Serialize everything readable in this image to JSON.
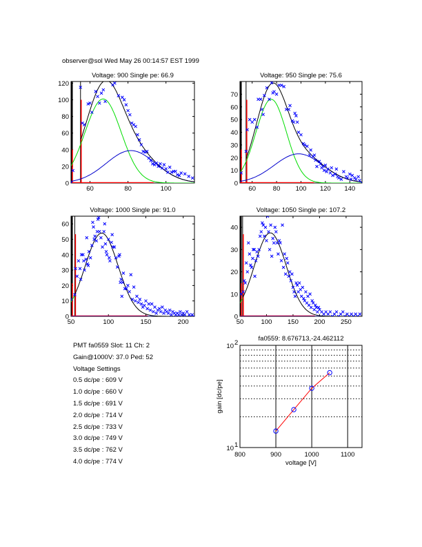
{
  "header": {
    "title": "observer@sol Wed May 26 00:14:57 EST 1999"
  },
  "info": {
    "pmt_line": "PMT fa0559 Slot: 11 Ch: 2",
    "gain_line": "Gain@1000V: 37.0 Ped: 52",
    "settings_title": "Voltage Settings",
    "settings": [
      "0.5 dc/pe : 609 V",
      "1.0 dc/pe : 660 V",
      "1.5 dc/pe : 691 V",
      "2.0 dc/pe : 714 V",
      "2.5 dc/pe : 733 V",
      "3.0 dc/pe : 749 V",
      "3.5 dc/pe : 762 V",
      "4.0 dc/pe : 774 V"
    ]
  },
  "colors": {
    "data": "#0000ff",
    "fit_total": "#000000",
    "fit_single": "#00dd00",
    "fit_double": "#0000cc",
    "pedestal": "#ff0000",
    "gain_line": "#ff0000"
  },
  "chart_data": [
    {
      "type": "scatter",
      "title": "Voltage: 900 Single pe: 66.9",
      "xlim": [
        50,
        115
      ],
      "ylim": [
        0,
        122
      ],
      "xticks": [
        60,
        80,
        100
      ],
      "yticks": [
        0,
        20,
        40,
        60,
        80,
        100,
        120
      ],
      "pedestal_cut": 55,
      "fits": {
        "single": {
          "amp": 101,
          "mu": 66.9,
          "sigma": 9.5
        },
        "double": {
          "amp": 39,
          "mu": 81.5,
          "sigma": 13
        }
      },
      "points": [
        [
          50,
          0
        ],
        [
          51,
          15
        ],
        [
          55,
          115
        ],
        [
          56,
          72
        ],
        [
          57,
          70
        ],
        [
          59,
          95
        ],
        [
          60,
          96
        ],
        [
          61,
          85
        ],
        [
          63,
          110
        ],
        [
          64,
          104
        ],
        [
          65,
          96
        ],
        [
          66,
          108
        ],
        [
          67,
          112
        ],
        [
          68,
          98
        ],
        [
          72,
          118
        ],
        [
          73,
          120
        ],
        [
          75,
          105
        ],
        [
          77,
          103
        ],
        [
          78,
          100
        ],
        [
          79,
          94
        ],
        [
          80,
          87
        ],
        [
          81,
          82
        ],
        [
          82,
          72
        ],
        [
          83,
          70
        ],
        [
          84,
          68
        ],
        [
          85,
          58
        ],
        [
          86,
          52
        ],
        [
          87,
          46
        ],
        [
          88,
          38
        ],
        [
          89,
          37
        ],
        [
          90,
          38
        ],
        [
          91,
          30
        ],
        [
          92,
          27
        ],
        [
          93,
          23
        ],
        [
          94,
          22
        ],
        [
          95,
          24
        ],
        [
          96,
          20
        ],
        [
          97,
          23
        ],
        [
          98,
          18
        ],
        [
          99,
          22
        ],
        [
          100,
          17
        ],
        [
          101,
          13
        ],
        [
          102,
          19
        ],
        [
          103,
          13
        ],
        [
          104,
          14
        ],
        [
          105,
          14
        ],
        [
          106,
          10
        ],
        [
          107,
          9
        ],
        [
          108,
          12
        ],
        [
          110,
          11
        ],
        [
          112,
          8
        ],
        [
          114,
          6
        ]
      ]
    },
    {
      "type": "scatter",
      "title": "Voltage: 950 Single pe: 75.6",
      "xlim": [
        50,
        150
      ],
      "ylim": [
        0,
        80
      ],
      "xticks": [
        60,
        80,
        100,
        120,
        140
      ],
      "yticks": [
        0,
        10,
        20,
        30,
        40,
        50,
        60,
        70
      ],
      "pedestal_cut": 55,
      "fits": {
        "single": {
          "amp": 66,
          "mu": 75.6,
          "sigma": 12.5
        },
        "double": {
          "amp": 23,
          "mu": 98,
          "sigma": 20
        }
      },
      "points": [
        [
          51,
          8
        ],
        [
          55,
          25
        ],
        [
          56,
          42
        ],
        [
          58,
          50
        ],
        [
          60,
          48
        ],
        [
          62,
          50
        ],
        [
          64,
          44
        ],
        [
          65,
          66
        ],
        [
          67,
          66
        ],
        [
          68,
          58
        ],
        [
          69,
          54
        ],
        [
          70,
          69
        ],
        [
          72,
          75
        ],
        [
          74,
          66
        ],
        [
          76,
          79
        ],
        [
          77,
          71
        ],
        [
          78,
          72
        ],
        [
          80,
          70
        ],
        [
          82,
          77
        ],
        [
          84,
          77
        ],
        [
          86,
          76
        ],
        [
          88,
          58
        ],
        [
          90,
          58
        ],
        [
          91,
          61
        ],
        [
          93,
          49
        ],
        [
          94,
          48
        ],
        [
          95,
          55
        ],
        [
          96,
          53
        ],
        [
          97,
          48
        ],
        [
          98,
          40
        ],
        [
          100,
          38
        ],
        [
          102,
          31
        ],
        [
          103,
          30
        ],
        [
          105,
          29
        ],
        [
          107,
          22
        ],
        [
          108,
          26
        ],
        [
          110,
          21
        ],
        [
          111,
          22
        ],
        [
          112,
          18
        ],
        [
          113,
          13
        ],
        [
          115,
          17
        ],
        [
          116,
          15
        ],
        [
          117,
          12
        ],
        [
          118,
          13
        ],
        [
          119,
          10
        ],
        [
          120,
          14
        ],
        [
          121,
          9
        ],
        [
          122,
          11
        ],
        [
          124,
          8
        ],
        [
          125,
          12
        ],
        [
          126,
          6
        ],
        [
          128,
          7
        ],
        [
          129,
          11
        ],
        [
          130,
          5
        ],
        [
          131,
          4
        ],
        [
          133,
          3
        ],
        [
          135,
          9
        ],
        [
          137,
          5
        ],
        [
          138,
          4
        ],
        [
          140,
          7
        ],
        [
          141,
          3
        ],
        [
          142,
          6
        ],
        [
          144,
          4
        ],
        [
          145,
          3
        ],
        [
          147,
          5
        ],
        [
          148,
          2
        ],
        [
          150,
          0
        ]
      ]
    },
    {
      "type": "scatter",
      "title": "Voltage: 1000 Single pe: 91.0",
      "xlim": [
        50,
        215
      ],
      "ylim": [
        0,
        65
      ],
      "xticks": [
        50,
        100,
        150,
        200
      ],
      "yticks": [
        0,
        10,
        20,
        30,
        40,
        50,
        60
      ],
      "pedestal_cut": 55,
      "fits": {
        "single": {
          "amp": 54,
          "mu": 91.0,
          "sigma": 22
        },
        "double": {
          "amp": 0,
          "mu": 182,
          "sigma": 30
        }
      },
      "points": [
        [
          50,
          11
        ],
        [
          55,
          14
        ],
        [
          56,
          31
        ],
        [
          58,
          26
        ],
        [
          60,
          36
        ],
        [
          62,
          31
        ],
        [
          63,
          24
        ],
        [
          64,
          40
        ],
        [
          66,
          40
        ],
        [
          67,
          36
        ],
        [
          68,
          30
        ],
        [
          70,
          37
        ],
        [
          71,
          51
        ],
        [
          72,
          34
        ],
        [
          73,
          33
        ],
        [
          74,
          42
        ],
        [
          76,
          38
        ],
        [
          78,
          46
        ],
        [
          79,
          61
        ],
        [
          80,
          58
        ],
        [
          81,
          50
        ],
        [
          82,
          52
        ],
        [
          84,
          49
        ],
        [
          85,
          55
        ],
        [
          86,
          63
        ],
        [
          87,
          64
        ],
        [
          88,
          55
        ],
        [
          90,
          51
        ],
        [
          92,
          45
        ],
        [
          94,
          55
        ],
        [
          95,
          60
        ],
        [
          96,
          47
        ],
        [
          97,
          42
        ],
        [
          98,
          40
        ],
        [
          100,
          50
        ],
        [
          101,
          38
        ],
        [
          102,
          36
        ],
        [
          104,
          48
        ],
        [
          105,
          53
        ],
        [
          106,
          45
        ],
        [
          108,
          45
        ],
        [
          110,
          38
        ],
        [
          112,
          32
        ],
        [
          114,
          39
        ],
        [
          115,
          40
        ],
        [
          116,
          22
        ],
        [
          117,
          24
        ],
        [
          118,
          13
        ],
        [
          119,
          22
        ],
        [
          120,
          28
        ],
        [
          122,
          18
        ],
        [
          124,
          18
        ],
        [
          126,
          20
        ],
        [
          128,
          16
        ],
        [
          130,
          27
        ],
        [
          132,
          11
        ],
        [
          134,
          19
        ],
        [
          136,
          10
        ],
        [
          138,
          13
        ],
        [
          140,
          9
        ],
        [
          142,
          11
        ],
        [
          144,
          8
        ],
        [
          146,
          6
        ],
        [
          148,
          7
        ],
        [
          150,
          10
        ],
        [
          152,
          5
        ],
        [
          154,
          8
        ],
        [
          156,
          4
        ],
        [
          158,
          8
        ],
        [
          160,
          3
        ],
        [
          162,
          6
        ],
        [
          164,
          2
        ],
        [
          166,
          4
        ],
        [
          168,
          5
        ],
        [
          170,
          3
        ],
        [
          172,
          6
        ],
        [
          174,
          2
        ],
        [
          176,
          4
        ],
        [
          178,
          3
        ],
        [
          180,
          2
        ],
        [
          182,
          4
        ],
        [
          184,
          1
        ],
        [
          186,
          3
        ],
        [
          188,
          2
        ],
        [
          190,
          1
        ],
        [
          192,
          2
        ],
        [
          194,
          1
        ],
        [
          196,
          3
        ],
        [
          198,
          1
        ],
        [
          200,
          2
        ],
        [
          202,
          1
        ],
        [
          205,
          3
        ],
        [
          208,
          1
        ],
        [
          210,
          0
        ],
        [
          212,
          1
        ],
        [
          214,
          0
        ]
      ]
    },
    {
      "type": "scatter",
      "title": "Voltage: 1050 Single pe: 107.2",
      "xlim": [
        50,
        280
      ],
      "ylim": [
        0,
        45
      ],
      "xticks": [
        50,
        100,
        150,
        200,
        250
      ],
      "yticks": [
        0,
        10,
        20,
        30,
        40
      ],
      "pedestal_cut": 55,
      "fits": {
        "single": {
          "amp": 37.5,
          "mu": 107.2,
          "sigma": 30
        },
        "double": {
          "amp": 0,
          "mu": 214,
          "sigma": 40
        }
      },
      "points": [
        [
          52,
          10
        ],
        [
          56,
          11
        ],
        [
          58,
          16
        ],
        [
          60,
          15
        ],
        [
          62,
          24
        ],
        [
          64,
          20
        ],
        [
          66,
          33
        ],
        [
          68,
          28
        ],
        [
          70,
          23
        ],
        [
          72,
          22
        ],
        [
          74,
          26
        ],
        [
          75,
          30
        ],
        [
          77,
          30
        ],
        [
          78,
          18
        ],
        [
          80,
          25
        ],
        [
          82,
          29
        ],
        [
          84,
          27
        ],
        [
          86,
          30
        ],
        [
          88,
          36
        ],
        [
          90,
          38
        ],
        [
          92,
          42
        ],
        [
          94,
          41
        ],
        [
          96,
          36
        ],
        [
          98,
          40
        ],
        [
          100,
          34
        ],
        [
          102,
          45
        ],
        [
          104,
          38
        ],
        [
          106,
          30
        ],
        [
          108,
          41
        ],
        [
          110,
          27
        ],
        [
          112,
          35
        ],
        [
          114,
          33
        ],
        [
          116,
          40
        ],
        [
          118,
          38
        ],
        [
          120,
          33
        ],
        [
          122,
          28
        ],
        [
          124,
          34
        ],
        [
          126,
          33
        ],
        [
          128,
          25
        ],
        [
          130,
          41
        ],
        [
          132,
          22
        ],
        [
          134,
          28
        ],
        [
          136,
          19
        ],
        [
          138,
          26
        ],
        [
          140,
          24
        ],
        [
          142,
          18
        ],
        [
          144,
          20
        ],
        [
          146,
          16
        ],
        [
          148,
          19
        ],
        [
          150,
          13
        ],
        [
          152,
          11
        ],
        [
          154,
          9
        ],
        [
          156,
          15
        ],
        [
          158,
          14
        ],
        [
          160,
          11
        ],
        [
          162,
          15
        ],
        [
          164,
          12
        ],
        [
          166,
          9
        ],
        [
          168,
          13
        ],
        [
          170,
          8
        ],
        [
          172,
          7
        ],
        [
          174,
          11
        ],
        [
          176,
          6
        ],
        [
          178,
          9
        ],
        [
          180,
          5
        ],
        [
          182,
          10
        ],
        [
          184,
          4
        ],
        [
          186,
          7
        ],
        [
          188,
          6
        ],
        [
          190,
          3
        ],
        [
          192,
          5
        ],
        [
          194,
          4
        ],
        [
          196,
          2
        ],
        [
          198,
          4
        ],
        [
          200,
          3
        ],
        [
          204,
          2
        ],
        [
          208,
          1
        ],
        [
          212,
          2
        ],
        [
          216,
          1
        ],
        [
          220,
          2
        ],
        [
          224,
          0
        ],
        [
          228,
          1
        ],
        [
          232,
          2
        ],
        [
          236,
          0
        ],
        [
          240,
          1
        ],
        [
          244,
          2
        ],
        [
          248,
          0
        ],
        [
          252,
          1
        ],
        [
          256,
          0
        ],
        [
          260,
          1
        ],
        [
          264,
          0
        ],
        [
          268,
          1
        ],
        [
          272,
          0
        ],
        [
          276,
          1
        ]
      ]
    },
    {
      "type": "line",
      "title": "fa0559: 8.676713,-24.462112",
      "xlabel": "voltage [V]",
      "ylabel": "gain [dc/pe]",
      "yscale": "log",
      "xlim": [
        800,
        1140
      ],
      "ylim": [
        10,
        100
      ],
      "xticks": [
        800,
        900,
        1000,
        1100
      ],
      "ytick_labels": [
        "10^1",
        "10^2"
      ],
      "grid": true,
      "x": [
        900,
        950,
        1000,
        1050
      ],
      "y": [
        14.5,
        23.5,
        38,
        54
      ]
    }
  ]
}
